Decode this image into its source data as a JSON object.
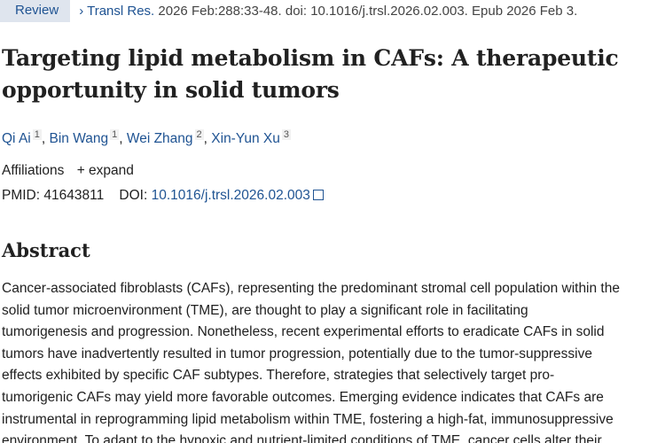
{
  "header": {
    "badge": "Review",
    "journal": "Transl Res.",
    "citation": "2026 Feb:288:33-48. doi: 10.1016/j.trsl.2026.02.003. Epub 2026 Feb 3."
  },
  "title_lines": [
    "Targeting lipid metabolism in CAFs: A therapeutic",
    "opportunity in solid tumors"
  ],
  "authors": [
    {
      "name": "Qi Ai",
      "aff": "1"
    },
    {
      "name": "Bin Wang",
      "aff": "1"
    },
    {
      "name": "Wei Zhang",
      "aff": "2"
    },
    {
      "name": "Xin-Yun Xu",
      "aff": "3"
    }
  ],
  "affiliations": {
    "label": "Affiliations",
    "expand": "+ expand"
  },
  "ids": {
    "pmid_label": "PMID:",
    "pmid": "41643811",
    "doi_label": "DOI:",
    "doi": "10.1016/j.trsl.2026.02.003"
  },
  "abstract": {
    "heading": "Abstract",
    "lines": [
      "Cancer-associated fibroblasts (CAFs), representing the predominant stromal cell population within the",
      "solid tumor microenvironment (TME), are thought to play a significant role in facilitating",
      "tumorigenesis and progression. Nonetheless, recent experimental efforts to eradicate CAFs in solid",
      "tumors have inadvertently resulted in tumor progression, potentially due to the tumor-suppressive",
      "effects exhibited by specific CAF subtypes. Therefore, strategies that selectively target pro-",
      "tumorigenic CAFs may yield more favorable outcomes. Emerging evidence indicates that CAFs are",
      "instrumental in reprogramming lipid metabolism within TME, fostering a high-fat, immunosuppressive",
      "environment. To adapt to the hypoxic and nutrient-limited conditions of TME, cancer cells alter their"
    ]
  }
}
